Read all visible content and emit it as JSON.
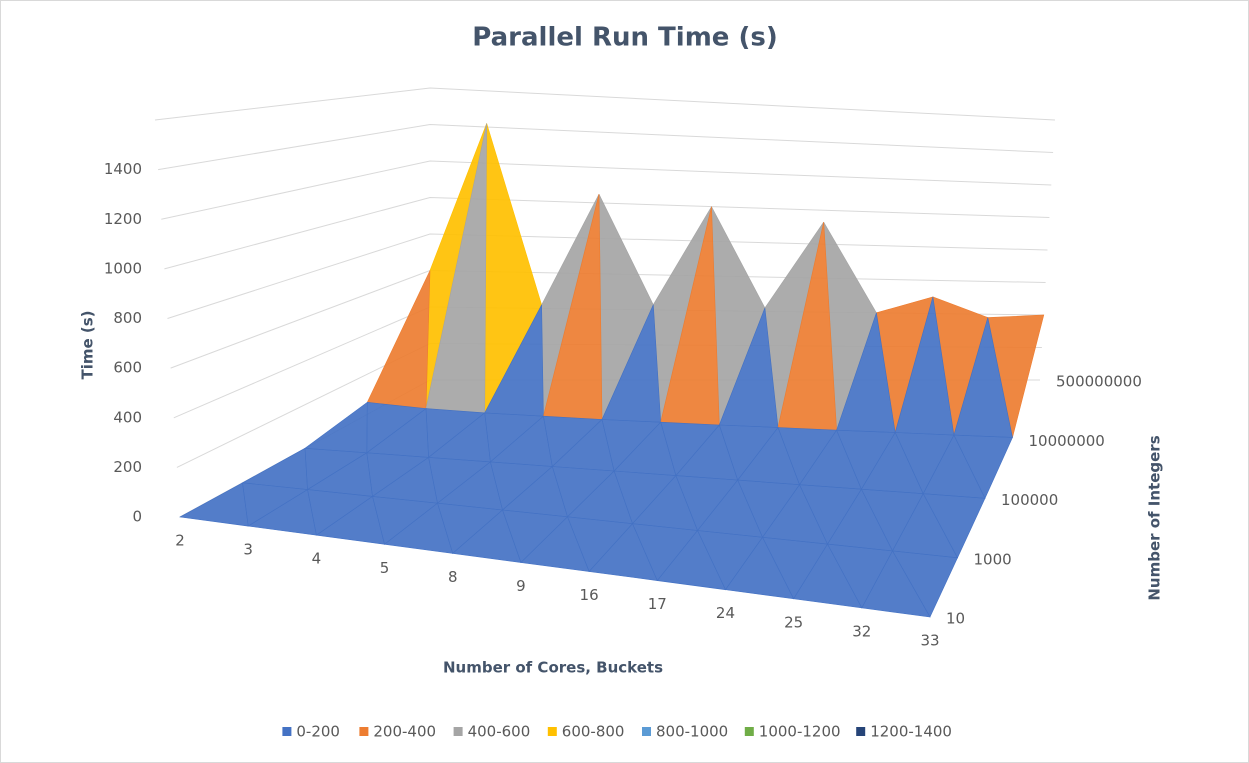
{
  "chart_data": {
    "type": "surface3d",
    "title": "Parallel Run Time (s)",
    "x_label": "Number of Cores, Buckets",
    "y_label": "Number of Integers",
    "z_label": "Time (s)",
    "categories": [
      "2",
      "3",
      "4",
      "5",
      "8",
      "9",
      "16",
      "17",
      "24",
      "25",
      "32",
      "33"
    ],
    "series": [
      {
        "name": "10",
        "values": [
          0,
          0,
          0,
          0,
          0,
          0,
          0,
          0,
          0,
          0,
          0,
          0
        ]
      },
      {
        "name": "1000",
        "values": [
          0,
          0,
          0,
          0,
          0,
          0,
          0,
          0,
          0,
          0,
          0,
          0
        ]
      },
      {
        "name": "100000",
        "values": [
          1,
          1,
          1,
          1,
          1,
          1,
          1,
          1,
          1,
          1,
          1,
          1
        ]
      },
      {
        "name": "10000000",
        "values": [
          60,
          40,
          30,
          25,
          20,
          18,
          15,
          14,
          12,
          12,
          10,
          10
        ]
      },
      {
        "name": "500000000",
        "values": [
          600,
          1420,
          420,
          1050,
          430,
          1000,
          420,
          930,
          400,
          500,
          380,
          400
        ]
      }
    ],
    "zlim": [
      0,
      1600
    ],
    "zticks": [
      0,
      200,
      400,
      600,
      800,
      1000,
      1200,
      1400
    ],
    "bands": [
      {
        "label": "0-200",
        "color": "#4472c4"
      },
      {
        "label": "200-400",
        "color": "#ed7d31"
      },
      {
        "label": "400-600",
        "color": "#a5a5a5"
      },
      {
        "label": "600-800",
        "color": "#ffc000"
      },
      {
        "label": "800-1000",
        "color": "#5b9bd5"
      },
      {
        "label": "1000-1200",
        "color": "#70ad47"
      },
      {
        "label": "1200-1400",
        "color": "#264478"
      }
    ],
    "grid": true
  }
}
